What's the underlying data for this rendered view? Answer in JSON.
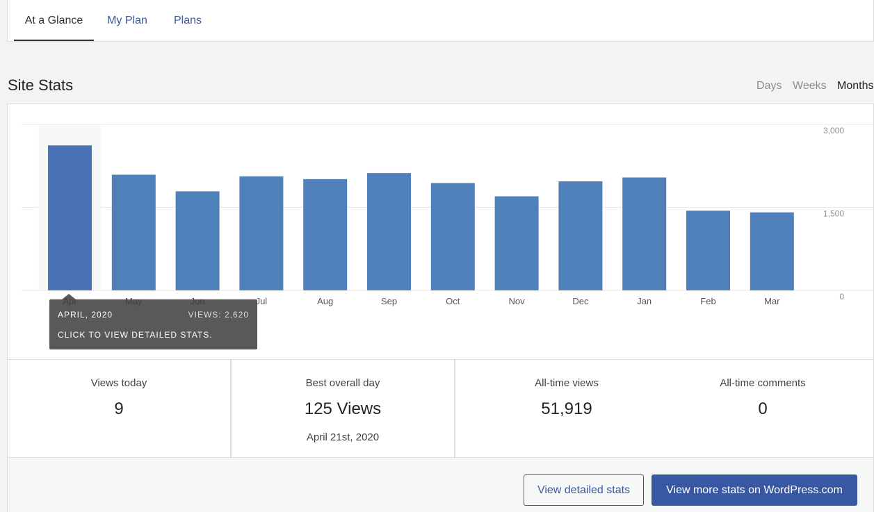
{
  "tabs": [
    {
      "label": "At a Glance",
      "active": true
    },
    {
      "label": "My Plan",
      "active": false
    },
    {
      "label": "Plans",
      "active": false
    }
  ],
  "section_title": "Site Stats",
  "periods": [
    {
      "label": "Days",
      "active": false
    },
    {
      "label": "Weeks",
      "active": false
    },
    {
      "label": "Months",
      "active": true
    }
  ],
  "chart_data": {
    "type": "bar",
    "categories": [
      "Apr",
      "May",
      "Jun",
      "Jul",
      "Aug",
      "Sep",
      "Oct",
      "Nov",
      "Dec",
      "Jan",
      "Feb",
      "Mar"
    ],
    "values": [
      2620,
      2090,
      1790,
      2060,
      2010,
      2120,
      1940,
      1700,
      1970,
      2040,
      1440,
      1410
    ],
    "ylim": [
      0,
      3000
    ],
    "yticks": [
      0,
      1500,
      3000
    ],
    "ytick_labels": [
      "0",
      "1,500",
      "3,000"
    ],
    "grid": true,
    "highlighted_index": 0,
    "colors": {
      "bar": "#4f80ba",
      "bar_selected": "#4a72b6",
      "selected_bg": "#f6f7f7"
    }
  },
  "tooltip": {
    "date": "April, 2020",
    "views": "Views: 2,620",
    "hint": "Click to view detailed stats."
  },
  "stats": {
    "views_today": {
      "label": "Views today",
      "value": "9"
    },
    "best_day": {
      "label": "Best overall day",
      "value": "125 Views",
      "date": "April 21st, 2020"
    },
    "all_time_views": {
      "label": "All-time views",
      "value": "51,919"
    },
    "all_time_comments": {
      "label": "All-time comments",
      "value": "0"
    }
  },
  "buttons": {
    "detailed": "View detailed stats",
    "wpcom": "View more stats on WordPress.com"
  }
}
